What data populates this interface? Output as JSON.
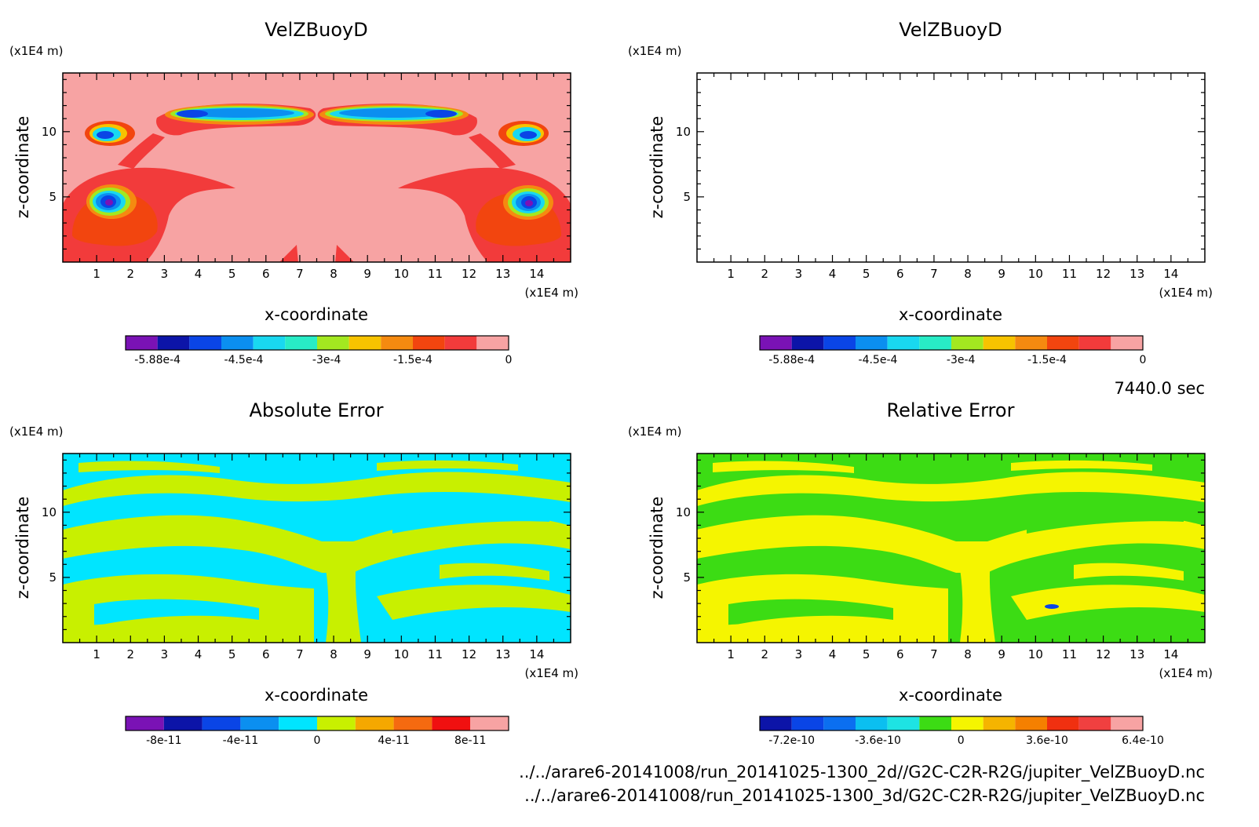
{
  "time_label": "7440.0 sec",
  "files": [
    "../../arare6-20141008/run_20141025-1300_2d//G2C-C2R-R2G/jupiter_VelZBuoyD.nc",
    "../../arare6-20141008/run_20141025-1300_3d/G2C-C2R-R2G/jupiter_VelZBuoyD.nc"
  ],
  "chart_data": [
    {
      "type": "heatmap",
      "title": "VelZBuoyD",
      "xlabel": "x-coordinate",
      "ylabel": "z-coordinate",
      "x_unit": "(x1E4 m)",
      "y_unit": "(x1E4 m)",
      "xlim": [
        0,
        15
      ],
      "ylim": [
        0,
        14.5
      ],
      "xticks": [
        "1",
        "2",
        "3",
        "4",
        "5",
        "6",
        "7",
        "8",
        "9",
        "10",
        "11",
        "12",
        "13",
        "14"
      ],
      "yticks": [
        "5",
        "10"
      ],
      "colorbar": {
        "colors": [
          "#7a12b5",
          "#0c14a8",
          "#0a45e6",
          "#0b8ff0",
          "#19d8f0",
          "#28ecc6",
          "#a3e820",
          "#f7c300",
          "#f58a10",
          "#f2450f",
          "#f23b3b",
          "#f7a3a3"
        ],
        "ticks": [
          "-5.88e-4",
          "-4.5e-4",
          "-3e-4",
          "-1.5e-4",
          "0"
        ]
      }
    },
    {
      "type": "heatmap",
      "title": "VelZBuoyD",
      "xlabel": "x-coordinate",
      "ylabel": "z-coordinate",
      "x_unit": "(x1E4 m)",
      "y_unit": "(x1E4 m)",
      "xlim": [
        0,
        15
      ],
      "ylim": [
        0,
        14.5
      ],
      "xticks": [
        "1",
        "2",
        "3",
        "4",
        "5",
        "6",
        "7",
        "8",
        "9",
        "10",
        "11",
        "12",
        "13",
        "14"
      ],
      "yticks": [
        "5",
        "10"
      ],
      "colorbar": {
        "colors": [
          "#7a12b5",
          "#0c14a8",
          "#0a45e6",
          "#0b8ff0",
          "#19d8f0",
          "#28ecc6",
          "#a3e820",
          "#f7c300",
          "#f58a10",
          "#f2450f",
          "#f23b3b",
          "#f7a3a3"
        ],
        "ticks": [
          "-5.88e-4",
          "-4.5e-4",
          "-3e-4",
          "-1.5e-4",
          "0"
        ]
      }
    },
    {
      "type": "heatmap",
      "title": "Absolute Error",
      "xlabel": "x-coordinate",
      "ylabel": "z-coordinate",
      "x_unit": "(x1E4 m)",
      "y_unit": "(x1E4 m)",
      "xlim": [
        0,
        15
      ],
      "ylim": [
        0,
        14.5
      ],
      "xticks": [
        "1",
        "2",
        "3",
        "4",
        "5",
        "6",
        "7",
        "8",
        "9",
        "10",
        "11",
        "12",
        "13",
        "14"
      ],
      "yticks": [
        "5",
        "10"
      ],
      "colorbar": {
        "colors": [
          "#7a12b5",
          "#0c14a8",
          "#0a45e6",
          "#0b8ff0",
          "#00e5ff",
          "#c8f000",
          "#f5a800",
          "#f56a10",
          "#f01010",
          "#f7a3a3"
        ],
        "ticks": [
          "-8e-11",
          "-4e-11",
          "0",
          "4e-11",
          "8e-11"
        ]
      }
    },
    {
      "type": "heatmap",
      "title": "Relative Error",
      "xlabel": "x-coordinate",
      "ylabel": "z-coordinate",
      "x_unit": "(x1E4 m)",
      "y_unit": "(x1E4 m)",
      "xlim": [
        0,
        15
      ],
      "ylim": [
        0,
        14.5
      ],
      "xticks": [
        "1",
        "2",
        "3",
        "4",
        "5",
        "6",
        "7",
        "8",
        "9",
        "10",
        "11",
        "12",
        "13",
        "14"
      ],
      "yticks": [
        "5",
        "10"
      ],
      "colorbar": {
        "colors": [
          "#0c14a8",
          "#0a45e6",
          "#0b6ff0",
          "#0bbff0",
          "#1ee3e3",
          "#3cdc14",
          "#f5f500",
          "#f5b400",
          "#f58000",
          "#f03010",
          "#f04040",
          "#f7a3a3"
        ],
        "ticks": [
          "-7.2e-10",
          "-3.6e-10",
          "0",
          "3.6e-10",
          "6.4e-10"
        ]
      }
    }
  ]
}
